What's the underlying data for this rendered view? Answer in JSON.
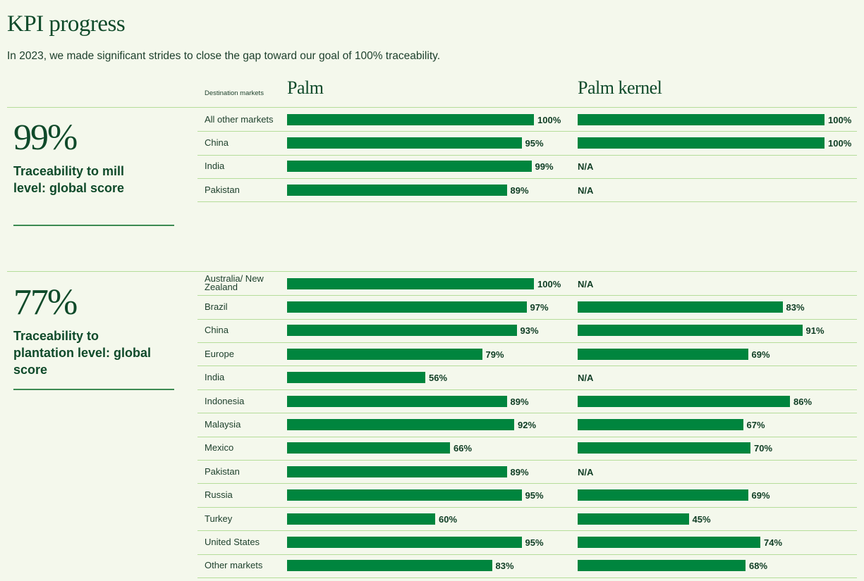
{
  "title": "KPI progress",
  "subtitle": "In 2023, we made significant strides to close the gap toward our goal of 100% traceability.",
  "destination_header": "Destination markets",
  "columns": [
    "Palm",
    "Palm kernel"
  ],
  "colors": {
    "bar": "#00853e",
    "rule": "#b5dd9a",
    "background": "#f4f8ec",
    "text": "#0f4a2a"
  },
  "chart_data": [
    {
      "type": "bar",
      "section": "mill",
      "kpi_value": "99%",
      "kpi_label": "Traceability to mill level: global score",
      "categories": [
        "All other markets",
        "China",
        "India",
        "Pakistan"
      ],
      "series": [
        {
          "name": "Palm",
          "values": [
            100,
            95,
            99,
            89
          ],
          "labels": [
            "100%",
            "95%",
            "99%",
            "89%"
          ]
        },
        {
          "name": "Palm kernel",
          "values": [
            100,
            100,
            null,
            null
          ],
          "labels": [
            "100%",
            "100%",
            "N/A",
            "N/A"
          ]
        }
      ],
      "xlim": [
        0,
        100
      ]
    },
    {
      "type": "bar",
      "section": "plantation",
      "kpi_value": "77%",
      "kpi_label": "Traceability to plantation level: global score",
      "categories": [
        "Australia/ New Zealand",
        "Brazil",
        "China",
        "Europe",
        "India",
        "Indonesia",
        "Malaysia",
        "Mexico",
        "Pakistan",
        "Russia",
        "Turkey",
        "United States",
        "Other markets"
      ],
      "series": [
        {
          "name": "Palm",
          "values": [
            100,
            97,
            93,
            79,
            56,
            89,
            92,
            66,
            89,
            95,
            60,
            95,
            83
          ],
          "labels": [
            "100%",
            "97%",
            "93%",
            "79%",
            "56%",
            "89%",
            "92%",
            "66%",
            "89%",
            "95%",
            "60%",
            "95%",
            "83%"
          ]
        },
        {
          "name": "Palm kernel",
          "values": [
            null,
            83,
            91,
            69,
            null,
            86,
            67,
            70,
            null,
            69,
            45,
            74,
            68
          ],
          "labels": [
            "N/A",
            "83%",
            "91%",
            "69%",
            "N/A",
            "86%",
            "67%",
            "70%",
            "N/A",
            "69%",
            "45%",
            "74%",
            "68%"
          ]
        }
      ],
      "xlim": [
        0,
        100
      ]
    }
  ]
}
